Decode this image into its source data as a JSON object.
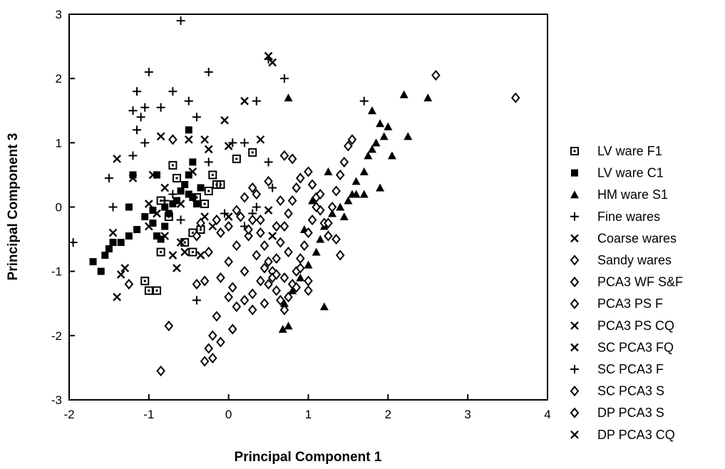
{
  "chart_data": {
    "type": "scatter",
    "title": "",
    "xlabel": "Principal Component 1",
    "ylabel": "Principal Component 3",
    "xlim": [
      -2,
      4
    ],
    "ylim": [
      -3,
      3
    ],
    "xticks": [
      "-2",
      "-1",
      "0",
      "1",
      "2",
      "3",
      "4"
    ],
    "yticks": [
      "3",
      "2",
      "1",
      "0",
      "-1",
      "-2",
      "-3"
    ],
    "grid": false,
    "legend_position": "right",
    "series": [
      {
        "name": "LV ware F1",
        "marker": "square-open",
        "points": [
          [
            -0.85,
            -0.7
          ],
          [
            -0.9,
            -1.3
          ],
          [
            -1.0,
            -1.3
          ],
          [
            -1.05,
            -1.15
          ],
          [
            -0.55,
            -0.55
          ],
          [
            -0.45,
            -0.4
          ],
          [
            -0.35,
            -0.35
          ],
          [
            -0.3,
            0.05
          ],
          [
            -0.25,
            0.25
          ],
          [
            -0.2,
            0.5
          ],
          [
            -0.15,
            0.35
          ],
          [
            -0.4,
            0.15
          ],
          [
            -0.65,
            0.45
          ],
          [
            -0.7,
            0.65
          ],
          [
            -0.85,
            0.1
          ],
          [
            -0.75,
            -0.15
          ],
          [
            0.1,
            0.75
          ],
          [
            0.3,
            0.85
          ],
          [
            -0.1,
            0.35
          ],
          [
            -0.45,
            -0.7
          ]
        ]
      },
      {
        "name": "LV ware C1",
        "marker": "square-filled",
        "points": [
          [
            -1.7,
            -0.85
          ],
          [
            -1.6,
            -1.0
          ],
          [
            -1.55,
            -0.75
          ],
          [
            -1.5,
            -0.65
          ],
          [
            -1.45,
            -0.55
          ],
          [
            -1.35,
            -0.55
          ],
          [
            -1.25,
            -0.45
          ],
          [
            -1.15,
            -0.35
          ],
          [
            -1.05,
            -0.15
          ],
          [
            -0.95,
            -0.25
          ],
          [
            -0.9,
            -0.45
          ],
          [
            -0.85,
            -0.5
          ],
          [
            -0.8,
            -0.3
          ],
          [
            -0.75,
            -0.1
          ],
          [
            -0.7,
            0.05
          ],
          [
            -0.65,
            0.1
          ],
          [
            -0.6,
            0.25
          ],
          [
            -0.55,
            0.35
          ],
          [
            -0.5,
            0.2
          ],
          [
            -0.45,
            0.15
          ],
          [
            -0.4,
            0.05
          ],
          [
            -0.35,
            0.3
          ],
          [
            -0.5,
            0.5
          ],
          [
            -0.45,
            0.7
          ],
          [
            -0.5,
            1.2
          ],
          [
            -0.9,
            0.5
          ],
          [
            -1.2,
            0.5
          ],
          [
            -1.25,
            0.0
          ],
          [
            -0.95,
            -0.05
          ],
          [
            -0.8,
            0.0
          ]
        ]
      },
      {
        "name": "HM ware S1",
        "marker": "triangle-filled",
        "points": [
          [
            0.75,
            1.7
          ],
          [
            1.8,
            1.5
          ],
          [
            1.9,
            1.3
          ],
          [
            2.0,
            1.25
          ],
          [
            1.95,
            1.1
          ],
          [
            1.85,
            1.0
          ],
          [
            1.8,
            0.9
          ],
          [
            1.75,
            0.8
          ],
          [
            1.7,
            0.55
          ],
          [
            1.6,
            0.4
          ],
          [
            1.55,
            0.2
          ],
          [
            1.5,
            0.1
          ],
          [
            1.4,
            0.0
          ],
          [
            1.3,
            -0.1
          ],
          [
            1.2,
            -0.3
          ],
          [
            1.15,
            -0.5
          ],
          [
            1.1,
            -0.7
          ],
          [
            1.0,
            -0.9
          ],
          [
            0.9,
            -1.1
          ],
          [
            0.8,
            -1.3
          ],
          [
            0.7,
            -1.5
          ],
          [
            0.75,
            -1.85
          ],
          [
            0.68,
            -1.9
          ],
          [
            2.2,
            1.75
          ],
          [
            2.5,
            1.7
          ],
          [
            2.25,
            1.1
          ],
          [
            2.05,
            0.8
          ],
          [
            1.9,
            0.3
          ],
          [
            1.6,
            0.2
          ],
          [
            1.2,
            -1.55
          ],
          [
            0.95,
            -0.35
          ],
          [
            1.05,
            0.1
          ],
          [
            1.45,
            -0.15
          ],
          [
            1.7,
            0.2
          ],
          [
            1.25,
            0.55
          ]
        ]
      },
      {
        "name": "Fine wares",
        "marker": "plus",
        "points": [
          [
            -0.6,
            2.9
          ],
          [
            -1.0,
            2.1
          ],
          [
            -1.15,
            1.8
          ],
          [
            -0.7,
            1.8
          ],
          [
            -1.2,
            1.5
          ],
          [
            -1.05,
            1.55
          ],
          [
            -1.1,
            1.4
          ],
          [
            -0.85,
            1.55
          ],
          [
            -0.5,
            1.65
          ],
          [
            -0.4,
            1.4
          ],
          [
            -1.15,
            1.2
          ],
          [
            -1.05,
            1.0
          ],
          [
            -1.2,
            0.8
          ],
          [
            -1.5,
            0.45
          ],
          [
            -1.45,
            0.0
          ],
          [
            -1.95,
            -0.55
          ],
          [
            -0.25,
            2.1
          ],
          [
            0.35,
            1.65
          ],
          [
            0.7,
            2.0
          ],
          [
            0.5,
            2.3
          ],
          [
            1.7,
            1.65
          ],
          [
            0.05,
            1.0
          ],
          [
            0.2,
            1.0
          ],
          [
            0.5,
            0.7
          ],
          [
            0.55,
            0.3
          ],
          [
            0.3,
            -0.1
          ],
          [
            0.2,
            -0.3
          ],
          [
            -0.05,
            -0.1
          ],
          [
            -0.4,
            -1.45
          ],
          [
            -0.8,
            0.1
          ],
          [
            -0.7,
            0.2
          ],
          [
            -0.6,
            -0.2
          ]
        ]
      },
      {
        "name": "Coarse wares",
        "marker": "x",
        "points": [
          [
            -1.4,
            0.75
          ],
          [
            -1.2,
            0.45
          ],
          [
            -1.45,
            -0.4
          ],
          [
            -1.3,
            -0.95
          ],
          [
            -1.35,
            -1.05
          ],
          [
            -1.4,
            -1.4
          ],
          [
            -1.0,
            0.05
          ],
          [
            -0.9,
            -0.1
          ],
          [
            -0.8,
            -0.45
          ],
          [
            -0.6,
            -0.55
          ],
          [
            -0.55,
            -0.7
          ],
          [
            -0.7,
            -0.75
          ],
          [
            -0.65,
            -0.95
          ],
          [
            -0.85,
            1.1
          ],
          [
            -0.5,
            1.05
          ],
          [
            -0.3,
            1.05
          ],
          [
            -0.25,
            0.9
          ],
          [
            0.0,
            0.95
          ],
          [
            -0.05,
            1.35
          ],
          [
            -0.35,
            -0.75
          ],
          [
            0.4,
            1.05
          ],
          [
            0.2,
            1.65
          ],
          [
            0.5,
            2.35
          ],
          [
            0.55,
            2.25
          ],
          [
            -0.95,
            0.5
          ],
          [
            -0.45,
            0.55
          ],
          [
            -0.8,
            0.3
          ],
          [
            -1.0,
            -0.3
          ]
        ]
      },
      {
        "name": "Sandy wares",
        "marker": "diamond-open",
        "points": [
          [
            0.05,
            -1.25
          ],
          [
            0.0,
            -1.4
          ],
          [
            0.1,
            -1.55
          ],
          [
            0.2,
            -1.45
          ],
          [
            0.3,
            -1.6
          ],
          [
            0.3,
            -1.35
          ],
          [
            0.45,
            -1.5
          ],
          [
            0.5,
            -1.2
          ],
          [
            0.55,
            -1.0
          ],
          [
            0.6,
            -0.8
          ],
          [
            0.65,
            -0.55
          ],
          [
            0.7,
            -0.3
          ],
          [
            0.75,
            -0.1
          ],
          [
            0.8,
            0.1
          ],
          [
            0.85,
            0.3
          ],
          [
            0.9,
            0.45
          ],
          [
            1.0,
            0.55
          ],
          [
            1.05,
            0.35
          ],
          [
            1.1,
            0.15
          ],
          [
            1.15,
            -0.05
          ],
          [
            1.2,
            -0.25
          ],
          [
            1.25,
            -0.45
          ],
          [
            1.3,
            0.0
          ],
          [
            1.35,
            0.25
          ],
          [
            1.4,
            0.5
          ],
          [
            1.45,
            0.7
          ],
          [
            1.5,
            0.95
          ],
          [
            1.55,
            1.05
          ],
          [
            0.7,
            0.8
          ],
          [
            0.8,
            0.75
          ],
          [
            0.35,
            0.2
          ],
          [
            0.4,
            -0.4
          ],
          [
            0.25,
            -0.45
          ],
          [
            0.15,
            -0.15
          ],
          [
            0.1,
            -0.6
          ],
          [
            0.0,
            -0.85
          ],
          [
            -0.1,
            -1.1
          ],
          [
            -0.15,
            -1.7
          ],
          [
            -0.2,
            -2.0
          ],
          [
            -0.25,
            -2.2
          ],
          [
            -0.3,
            -2.4
          ],
          [
            -0.2,
            -2.35
          ],
          [
            -0.1,
            -2.1
          ],
          [
            0.05,
            -1.9
          ]
        ]
      },
      {
        "name": "PCA3 WF S&F",
        "marker": "diamond-open",
        "points": [
          [
            0.4,
            -0.2
          ],
          [
            0.45,
            -0.6
          ],
          [
            0.5,
            -0.85
          ],
          [
            0.55,
            -1.1
          ],
          [
            0.6,
            -1.3
          ],
          [
            0.65,
            -1.45
          ],
          [
            0.7,
            -1.6
          ],
          [
            0.75,
            -1.4
          ],
          [
            0.8,
            -1.2
          ],
          [
            0.85,
            -1.0
          ],
          [
            0.9,
            -0.8
          ],
          [
            0.95,
            -0.6
          ],
          [
            1.0,
            -0.4
          ],
          [
            1.05,
            -0.2
          ],
          [
            1.1,
            0.0
          ],
          [
            1.15,
            0.2
          ],
          [
            0.65,
            0.1
          ],
          [
            0.5,
            0.4
          ],
          [
            0.3,
            0.3
          ],
          [
            0.2,
            0.15
          ],
          [
            -0.15,
            -0.2
          ],
          [
            -0.25,
            -0.7
          ],
          [
            -0.3,
            -1.15
          ],
          [
            -0.4,
            -1.2
          ],
          [
            -0.1,
            -0.4
          ]
        ]
      },
      {
        "name": "PCA3 PS F",
        "marker": "diamond-open",
        "points": [
          [
            -0.75,
            -1.85
          ],
          [
            -0.85,
            -2.55
          ],
          [
            -1.25,
            -1.2
          ],
          [
            -0.7,
            1.05
          ],
          [
            2.6,
            2.05
          ],
          [
            3.6,
            1.7
          ],
          [
            -0.35,
            -0.25
          ],
          [
            -0.4,
            -0.45
          ],
          [
            0.0,
            -0.3
          ],
          [
            0.1,
            -0.05
          ],
          [
            0.25,
            -0.35
          ],
          [
            0.35,
            -0.75
          ],
          [
            0.45,
            -0.95
          ],
          [
            0.6,
            -1.05
          ],
          [
            0.85,
            -1.25
          ]
        ]
      },
      {
        "name": "PCA3 PS CQ",
        "marker": "x",
        "points": [
          [
            -0.3,
            -0.15
          ],
          [
            -0.2,
            -0.3
          ],
          [
            0.5,
            -0.05
          ]
        ]
      },
      {
        "name": "SC PCA3 FQ",
        "marker": "x",
        "points": [
          [
            0.55,
            -0.45
          ]
        ]
      },
      {
        "name": "SC PCA3 F",
        "marker": "plus",
        "points": [
          [
            -0.25,
            0.7
          ],
          [
            0.35,
            0.0
          ]
        ]
      },
      {
        "name": "SC PCA3 S",
        "marker": "diamond-open",
        "points": [
          [
            0.3,
            -0.2
          ],
          [
            0.6,
            -0.3
          ],
          [
            0.75,
            -0.7
          ],
          [
            0.9,
            -0.95
          ],
          [
            1.0,
            -1.15
          ],
          [
            0.4,
            -1.15
          ],
          [
            0.2,
            -1.0
          ]
        ]
      },
      {
        "name": "DP PCA3 S",
        "marker": "diamond-open",
        "points": [
          [
            1.25,
            -0.25
          ],
          [
            1.35,
            -0.5
          ],
          [
            1.4,
            -0.75
          ],
          [
            1.0,
            -1.3
          ],
          [
            0.7,
            -1.1
          ]
        ]
      },
      {
        "name": "DP PCA3 CQ",
        "marker": "x",
        "points": [
          [
            0.0,
            -0.15
          ],
          [
            -0.6,
            0.05
          ]
        ]
      }
    ]
  }
}
